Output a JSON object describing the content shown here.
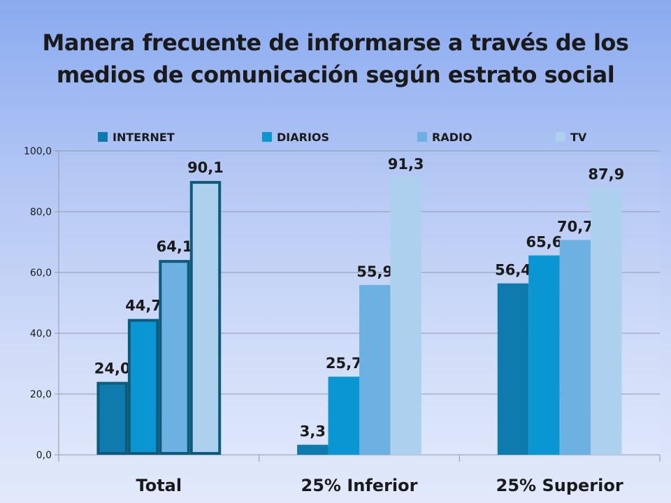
{
  "title_line1": "Manera frecuente de informarse a través de los",
  "title_line2": "medios de comunicación según estrato social",
  "chart_data": {
    "type": "bar",
    "title": "Manera frecuente de informarse a través de los medios de comunicación según estrato social",
    "categories": [
      "Total",
      "25% Inferior",
      "25% Superior"
    ],
    "series": [
      {
        "name": "INTERNET",
        "values": [
          24.0,
          3.3,
          56.4
        ],
        "labels": [
          "24,0",
          "3,3",
          "56,4"
        ],
        "color": "#0e7aad"
      },
      {
        "name": "DIARIOS",
        "values": [
          44.7,
          25.7,
          65.6
        ],
        "labels": [
          "44,7",
          "25,7",
          "65,6"
        ],
        "color": "#0a96d2"
      },
      {
        "name": "RADIO",
        "values": [
          64.1,
          55.9,
          70.7
        ],
        "labels": [
          "64,1",
          "55,9",
          "70,7"
        ],
        "color": "#6cb1e2"
      },
      {
        "name": "TV",
        "values": [
          90.1,
          91.3,
          87.9
        ],
        "labels": [
          "90,1",
          "91,3",
          "87,9"
        ],
        "color": "#acd0ee"
      }
    ],
    "yticks": [
      0,
      20,
      40,
      60,
      80,
      100
    ],
    "ytick_labels": [
      "0,0",
      "20,0",
      "40,0",
      "60,0",
      "80,0",
      "100,0"
    ],
    "ylim": [
      0,
      100
    ],
    "xlabel": "",
    "ylabel": "",
    "grid": true,
    "legend_position": "top",
    "highlighted_category": "Total",
    "highlight_outline_color": "#0d5a7a"
  }
}
